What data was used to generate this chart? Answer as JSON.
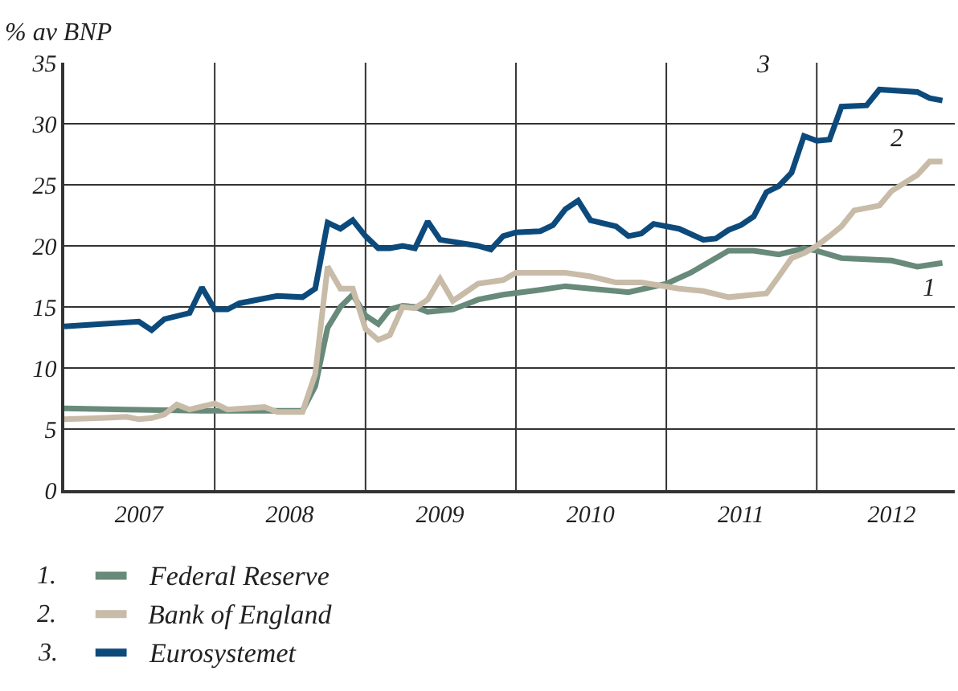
{
  "chart_data": {
    "type": "line",
    "ylabel": "% av BNP",
    "xlim": [
      "2007-01",
      "2012-12"
    ],
    "ylim": [
      0,
      35
    ],
    "yticks": [
      0,
      5,
      10,
      15,
      20,
      25,
      30,
      35
    ],
    "xticks": [
      {
        "value": "2007-07",
        "label": "2007"
      },
      {
        "value": "2008-01",
        "label": null
      },
      {
        "value": "2008-07",
        "label": "2008"
      },
      {
        "value": "2009-01",
        "label": null
      },
      {
        "value": "2009-07",
        "label": "2009"
      },
      {
        "value": "2010-01",
        "label": null
      },
      {
        "value": "2010-07",
        "label": "2010"
      },
      {
        "value": "2011-01",
        "label": null
      },
      {
        "value": "2011-07",
        "label": "2011"
      },
      {
        "value": "2012-01",
        "label": null
      },
      {
        "value": "2012-07",
        "label": "2012"
      }
    ],
    "grid": true,
    "legend": "bottom",
    "line_style": "solid",
    "marker": "none",
    "series": [
      {
        "name": "Federal Reserve",
        "color": "#688a7a",
        "x": [
          "2007-01",
          "2007-06",
          "2007-12",
          "2008-04",
          "2008-08",
          "2008-09",
          "2008-10",
          "2008-11",
          "2008-12",
          "2009-01",
          "2009-02",
          "2009-03",
          "2009-04",
          "2009-05",
          "2009-06",
          "2009-08",
          "2009-09",
          "2009-10",
          "2009-12",
          "2010-03",
          "2010-05",
          "2010-07",
          "2010-10",
          "2011-01",
          "2011-03",
          "2011-06",
          "2011-08",
          "2011-10",
          "2011-12",
          "2012-01",
          "2012-03",
          "2012-07",
          "2012-09",
          "2012-11"
        ],
        "values": [
          6.7,
          6.6,
          6.5,
          6.5,
          6.5,
          8.5,
          13.3,
          15.0,
          16.0,
          14.3,
          13.6,
          14.8,
          15.1,
          15.0,
          14.6,
          14.8,
          15.2,
          15.6,
          16.0,
          16.4,
          16.7,
          16.5,
          16.2,
          16.9,
          17.8,
          19.6,
          19.6,
          19.3,
          19.8,
          19.6,
          19.0,
          18.8,
          18.3,
          18.6
        ]
      },
      {
        "name": "Bank of England",
        "color": "#c8bba8",
        "x": [
          "2007-01",
          "2007-04",
          "2007-06",
          "2007-07",
          "2007-08",
          "2007-09",
          "2007-10",
          "2007-11",
          "2008-01",
          "2008-02",
          "2008-05",
          "2008-06",
          "2008-08",
          "2008-09",
          "2008-10",
          "2008-11",
          "2008-12",
          "2009-01",
          "2009-02",
          "2009-03",
          "2009-04",
          "2009-05",
          "2009-06",
          "2009-07",
          "2009-08",
          "2009-09",
          "2009-10",
          "2009-12",
          "2010-01",
          "2010-03",
          "2010-05",
          "2010-07",
          "2010-09",
          "2010-11",
          "2011-02",
          "2011-04",
          "2011-06",
          "2011-09",
          "2011-10",
          "2011-11",
          "2011-12",
          "2012-01",
          "2012-02",
          "2012-03",
          "2012-04",
          "2012-06",
          "2012-07",
          "2012-09",
          "2012-10",
          "2012-11"
        ],
        "values": [
          5.8,
          5.9,
          6.0,
          5.8,
          5.9,
          6.2,
          7.0,
          6.6,
          7.1,
          6.6,
          6.8,
          6.4,
          6.4,
          9.5,
          18.3,
          16.5,
          16.5,
          13.2,
          12.3,
          12.7,
          15.0,
          14.9,
          15.6,
          17.3,
          15.5,
          16.2,
          16.9,
          17.2,
          17.8,
          17.8,
          17.8,
          17.5,
          17.0,
          17.0,
          16.5,
          16.3,
          15.8,
          16.1,
          17.5,
          19.0,
          19.4,
          20.0,
          20.8,
          21.6,
          22.9,
          23.3,
          24.5,
          25.8,
          26.9,
          26.9
        ]
      },
      {
        "name": "Eurosystemet",
        "color": "#0d4a7c",
        "x": [
          "2007-01",
          "2007-04",
          "2007-07",
          "2007-08",
          "2007-09",
          "2007-11",
          "2007-12",
          "2008-01",
          "2008-02",
          "2008-03",
          "2008-06",
          "2008-08",
          "2008-09",
          "2008-10",
          "2008-11",
          "2008-12",
          "2009-01",
          "2009-02",
          "2009-03",
          "2009-04",
          "2009-05",
          "2009-06",
          "2009-07",
          "2009-10",
          "2009-11",
          "2009-12",
          "2010-01",
          "2010-03",
          "2010-04",
          "2010-05",
          "2010-06",
          "2010-07",
          "2010-09",
          "2010-10",
          "2010-11",
          "2010-12",
          "2011-02",
          "2011-04",
          "2011-05",
          "2011-06",
          "2011-07",
          "2011-08",
          "2011-09",
          "2011-10",
          "2011-11",
          "2011-12",
          "2012-01",
          "2012-02",
          "2012-03",
          "2012-05",
          "2012-06",
          "2012-09",
          "2012-10",
          "2012-11"
        ],
        "values": [
          13.4,
          13.6,
          13.8,
          13.1,
          14.0,
          14.5,
          16.6,
          14.8,
          14.8,
          15.3,
          15.9,
          15.8,
          16.5,
          21.9,
          21.4,
          22.1,
          20.8,
          19.8,
          19.8,
          20.0,
          19.8,
          22.0,
          20.5,
          20.0,
          19.7,
          20.8,
          21.1,
          21.2,
          21.7,
          23.0,
          23.7,
          22.1,
          21.6,
          20.8,
          21.0,
          21.8,
          21.4,
          20.5,
          20.6,
          21.3,
          21.7,
          22.4,
          24.4,
          24.9,
          26.0,
          29.0,
          28.6,
          28.7,
          31.4,
          31.5,
          32.8,
          32.6,
          32.1,
          31.9
        ]
      }
    ],
    "annotations": [
      "1",
      "2",
      "3",
      "1.",
      "2.",
      "3."
    ]
  }
}
